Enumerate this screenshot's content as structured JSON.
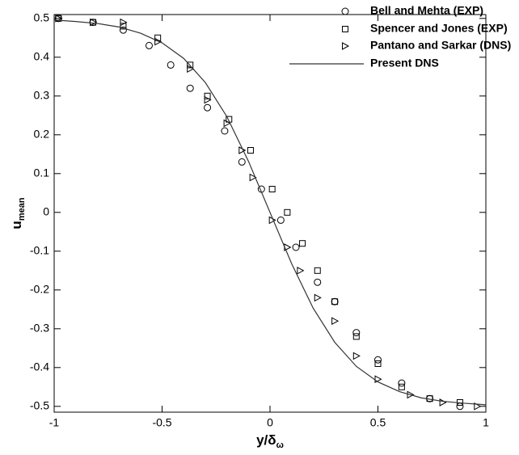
{
  "chart_data": {
    "type": "scatter",
    "xlabel": {
      "text": "y/δ",
      "sub": "ω"
    },
    "ylabel": {
      "text": "u",
      "sub": "mean"
    },
    "xlim": [
      -1,
      1
    ],
    "ylim": [
      -0.515,
      0.51
    ],
    "xticks": [
      -1,
      -0.5,
      0,
      0.5,
      1
    ],
    "yticks": [
      0.5,
      0.4,
      0.3,
      0.2,
      0.1,
      0,
      -0.1,
      -0.2,
      -0.3,
      -0.4,
      -0.5
    ],
    "legend": "top-right",
    "series": [
      {
        "name": "Bell and Mehta (EXP)",
        "marker": "circle",
        "color": "#000000",
        "x": [
          -0.98,
          -0.82,
          -0.68,
          -0.56,
          -0.46,
          -0.37,
          -0.29,
          -0.21,
          -0.13,
          -0.04,
          0.05,
          0.12,
          0.22,
          0.3,
          0.4,
          0.5,
          0.61,
          0.74,
          0.88
        ],
        "values": [
          0.5,
          0.49,
          0.47,
          0.43,
          0.38,
          0.32,
          0.27,
          0.21,
          0.13,
          0.06,
          -0.02,
          -0.09,
          -0.18,
          -0.23,
          -0.31,
          -0.38,
          -0.44,
          -0.48,
          -0.5
        ]
      },
      {
        "name": "Spencer and Jones (EXP)",
        "marker": "square",
        "color": "#000000",
        "x": [
          -0.98,
          -0.82,
          -0.68,
          -0.52,
          -0.37,
          -0.29,
          -0.19,
          -0.09,
          0.01,
          0.08,
          0.15,
          0.22,
          0.3,
          0.4,
          0.5,
          0.61,
          0.74,
          0.88
        ],
        "values": [
          0.5,
          0.49,
          0.48,
          0.45,
          0.38,
          0.3,
          0.24,
          0.16,
          0.06,
          0.0,
          -0.08,
          -0.15,
          -0.23,
          -0.32,
          -0.39,
          -0.45,
          -0.48,
          -0.49
        ]
      },
      {
        "name": "Pantano and Sarkar (DNS)",
        "marker": "triangle",
        "color": "#000000",
        "x": [
          -0.98,
          -0.82,
          -0.68,
          -0.52,
          -0.37,
          -0.29,
          -0.2,
          -0.13,
          -0.08,
          0.01,
          0.08,
          0.14,
          0.22,
          0.3,
          0.4,
          0.5,
          0.65,
          0.8,
          0.96
        ],
        "values": [
          0.5,
          0.49,
          0.49,
          0.44,
          0.37,
          0.29,
          0.23,
          0.16,
          0.09,
          -0.02,
          -0.09,
          -0.15,
          -0.22,
          -0.28,
          -0.37,
          -0.43,
          -0.47,
          -0.49,
          -0.5
        ]
      },
      {
        "name": "Present DNS",
        "marker": "line",
        "color": "#333333",
        "x": [
          -1,
          -0.9,
          -0.8,
          -0.7,
          -0.6,
          -0.5,
          -0.4,
          -0.3,
          -0.2,
          -0.1,
          0,
          0.1,
          0.2,
          0.3,
          0.4,
          0.5,
          0.6,
          0.7,
          0.8,
          0.9,
          1
        ],
        "values": [
          0.496,
          0.492,
          0.487,
          0.478,
          0.462,
          0.437,
          0.397,
          0.335,
          0.247,
          0.132,
          0,
          -0.132,
          -0.247,
          -0.335,
          -0.397,
          -0.437,
          -0.462,
          -0.478,
          -0.487,
          -0.492,
          -0.496
        ]
      }
    ]
  }
}
